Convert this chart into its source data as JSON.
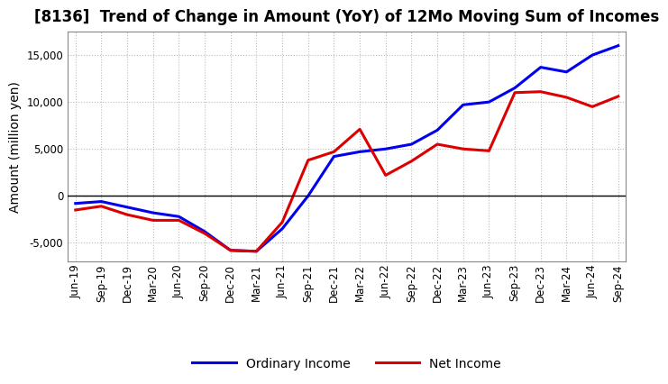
{
  "title": "[8136]  Trend of Change in Amount (YoY) of 12Mo Moving Sum of Incomes",
  "ylabel": "Amount (million yen)",
  "x_labels": [
    "Jun-19",
    "Sep-19",
    "Dec-19",
    "Mar-20",
    "Jun-20",
    "Sep-20",
    "Dec-20",
    "Mar-21",
    "Jun-21",
    "Sep-21",
    "Dec-21",
    "Mar-22",
    "Jun-22",
    "Sep-22",
    "Dec-22",
    "Mar-23",
    "Jun-23",
    "Sep-23",
    "Dec-23",
    "Mar-24",
    "Jun-24",
    "Sep-24"
  ],
  "ordinary_income": [
    -800,
    -600,
    -1200,
    -1800,
    -2200,
    -3800,
    -5800,
    -5900,
    -3500,
    0,
    4200,
    4700,
    5000,
    5500,
    7000,
    9700,
    10000,
    11500,
    13700,
    13200,
    15000,
    16000
  ],
  "net_income": [
    -1500,
    -1100,
    -2000,
    -2600,
    -2600,
    -4000,
    -5800,
    -5900,
    -2800,
    3800,
    4700,
    7100,
    2200,
    3700,
    5500,
    5000,
    4800,
    11000,
    11100,
    10500,
    9500,
    10600
  ],
  "ordinary_income_color": "#0000ee",
  "net_income_color": "#dd0000",
  "line_width": 2.2,
  "background_color": "#ffffff",
  "grid_color": "#bbbbbb",
  "ylim": [
    -7000,
    17500
  ],
  "yticks": [
    -5000,
    0,
    5000,
    10000,
    15000
  ],
  "legend_labels": [
    "Ordinary Income",
    "Net Income"
  ],
  "title_fontsize": 12,
  "axis_fontsize": 10,
  "tick_fontsize": 8.5
}
